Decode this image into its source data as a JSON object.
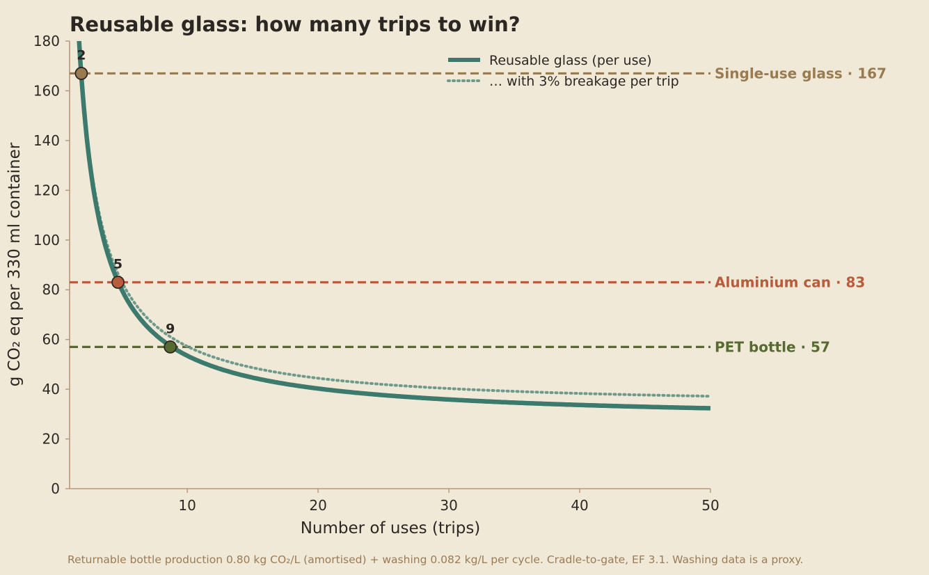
{
  "chart_data": {
    "type": "line",
    "title": "Reusable glass: how many trips to win?",
    "xlabel": "Number of uses (trips)",
    "ylabel": "g CO₂ eq per 330 ml container",
    "xlim": [
      1,
      50
    ],
    "ylim": [
      0,
      180
    ],
    "xticks": [
      10,
      20,
      30,
      40,
      50
    ],
    "yticks": [
      0,
      20,
      40,
      60,
      80,
      100,
      120,
      140,
      160,
      180
    ],
    "grid": false,
    "legend_position": "top-right",
    "series": [
      {
        "name": "Reusable glass (per use)",
        "style": "solid",
        "color": "#3d7a6e",
        "fixed_g": 264,
        "per_use_g": 27.06,
        "breakage": 0
      },
      {
        "name": "… with 3% breakage per trip",
        "style": "dotted",
        "color": "#6e9a8c",
        "fixed_g": 264,
        "per_use_g": 27.06,
        "breakage": 0.03
      }
    ],
    "references": [
      {
        "label": "Single-use glass · 167",
        "value": 167,
        "color": "#9a7b4f"
      },
      {
        "label": "Aluminium can · 83",
        "value": 83,
        "color": "#b85c3c"
      },
      {
        "label": "PET bottle · 57",
        "value": 57,
        "color": "#556b2f"
      }
    ],
    "markers": [
      {
        "label": "2",
        "x": 1.9,
        "y": 167,
        "color": "#9a7b4f"
      },
      {
        "label": "5",
        "x": 4.7,
        "y": 83,
        "color": "#b85c3c"
      },
      {
        "label": "9",
        "x": 8.7,
        "y": 57,
        "color": "#556b2f"
      }
    ],
    "footnote": "Returnable bottle production 0.80 kg CO₂/L (amortised) + washing 0.082 kg/L per cycle. Cradle-to-gate, EF 3.1. Washing data is a proxy."
  },
  "colors": {
    "background": "#f1e9d8",
    "text": "#2b2824",
    "axis": "#b8957a",
    "footnote": "#9a7b55"
  }
}
